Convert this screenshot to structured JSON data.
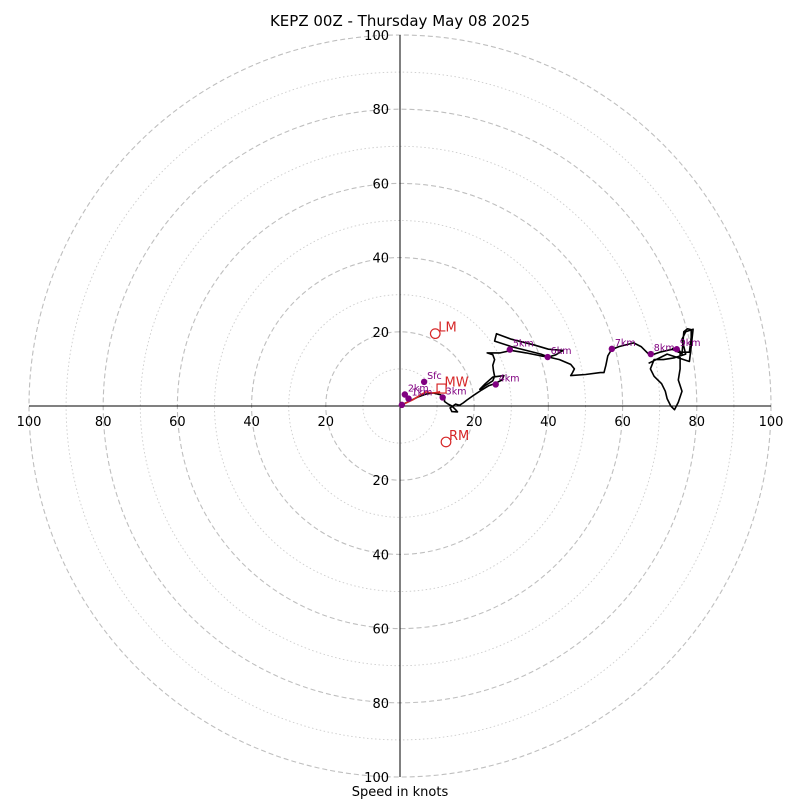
{
  "chart_data": {
    "type": "hodograph",
    "title": "KEPZ 00Z - Thursday May 08 2025",
    "xlabel": "Speed in knots",
    "units": "knots",
    "max_speed": 100,
    "ring_step_major": 20,
    "ring_step_minor": 10,
    "tick_labels": [
      "20",
      "40",
      "60",
      "80",
      "100"
    ],
    "colors": {
      "trace": "#000000",
      "low_level_trace": "#d62728",
      "height_marker": "#800080",
      "motion_marker": "#d62728",
      "ring_major": "#bfbfbf",
      "ring_minor": "#cccccc"
    },
    "wind_profile": [
      [
        0.5,
        0.3
      ],
      [
        1.5,
        0.8
      ],
      [
        3,
        1.5
      ],
      [
        5,
        2.5
      ],
      [
        7,
        3.2
      ],
      [
        9,
        3.5
      ],
      [
        11,
        3.0
      ],
      [
        12,
        2.2
      ],
      [
        12,
        1.2
      ],
      [
        13,
        0.5
      ],
      [
        14,
        0
      ],
      [
        15,
        -1.0
      ],
      [
        15.5,
        -1.6
      ],
      [
        14,
        -1.5
      ],
      [
        13.5,
        -0.5
      ],
      [
        15,
        0.5
      ],
      [
        16,
        0.2
      ],
      [
        17,
        0.8
      ],
      [
        18,
        1.6
      ],
      [
        20,
        3.0
      ],
      [
        22,
        4.3
      ],
      [
        24,
        5.5
      ],
      [
        25.5,
        6.0
      ],
      [
        27.5,
        7.0
      ],
      [
        28,
        8.2
      ],
      [
        25,
        7.8
      ],
      [
        23,
        6.0
      ],
      [
        22,
        5.0
      ],
      [
        21.5,
        4.5
      ],
      [
        23,
        5.5
      ],
      [
        25,
        6.8
      ],
      [
        25.5,
        8.0
      ],
      [
        25.2,
        9.5
      ],
      [
        25,
        11.0
      ],
      [
        25.5,
        12.5
      ],
      [
        25,
        13.8
      ],
      [
        23.5,
        14.3
      ],
      [
        27,
        14.3
      ],
      [
        30,
        15.0
      ],
      [
        34,
        14.3
      ],
      [
        38,
        13.5
      ],
      [
        40,
        13.2
      ],
      [
        42,
        13.8
      ],
      [
        44,
        15.0
      ],
      [
        40,
        15.3
      ],
      [
        36,
        16.5
      ],
      [
        30,
        18.0
      ],
      [
        26,
        19.5
      ],
      [
        25.5,
        17.5
      ],
      [
        30,
        16.0
      ],
      [
        34,
        15.0
      ],
      [
        38,
        14.0
      ],
      [
        40,
        13.2
      ],
      [
        43,
        12.5
      ],
      [
        46,
        11.2
      ],
      [
        47,
        10.0
      ],
      [
        46.5,
        9.0
      ],
      [
        46,
        8.2
      ],
      [
        50,
        8.5
      ],
      [
        54,
        9.0
      ],
      [
        55,
        9.0
      ],
      [
        55.5,
        11.0
      ],
      [
        56,
        13.5
      ],
      [
        57,
        15.2
      ],
      [
        59,
        16.0
      ],
      [
        63,
        17.0
      ],
      [
        65,
        16.0
      ],
      [
        67,
        14.0
      ],
      [
        68,
        13.8
      ],
      [
        70,
        14.5
      ],
      [
        73,
        15.2
      ],
      [
        75,
        15.3
      ],
      [
        76,
        14.0
      ],
      [
        76.5,
        20.0
      ],
      [
        77.5,
        20.8
      ],
      [
        78.5,
        20.6
      ],
      [
        78.5,
        18.5
      ],
      [
        78,
        14.5
      ],
      [
        75,
        14.5
      ],
      [
        73.5,
        15.5
      ],
      [
        74.2,
        15.0
      ],
      [
        75.5,
        14.5
      ],
      [
        75.5,
        10.0
      ],
      [
        75,
        7.0
      ],
      [
        76,
        4.0
      ],
      [
        75,
        1.0
      ],
      [
        74,
        -1.0
      ],
      [
        73,
        0.0
      ],
      [
        72,
        2.0
      ],
      [
        71.5,
        4.0
      ],
      [
        70.5,
        6.0
      ],
      [
        68.5,
        8.0
      ],
      [
        67.5,
        10.0
      ],
      [
        68.5,
        12.5
      ],
      [
        71,
        12.5
      ],
      [
        74,
        13.0
      ],
      [
        77,
        14.0
      ],
      [
        76,
        18.0
      ],
      [
        77,
        20.0
      ],
      [
        79,
        20.7
      ],
      [
        78.5,
        16.0
      ],
      [
        78,
        12.0
      ],
      [
        72,
        14.0
      ],
      [
        67,
        11.5
      ]
    ],
    "low_level_trace": [
      [
        0.5,
        0.3
      ],
      [
        2,
        1.0
      ],
      [
        3.5,
        1.7
      ],
      [
        5.5,
        3.0
      ],
      [
        7,
        3.8
      ],
      [
        8.5,
        3.5
      ],
      [
        10,
        3.6
      ],
      [
        10.8,
        3.9
      ]
    ],
    "height_markers": [
      {
        "label": "Sfc",
        "u": 6.5,
        "v": 6.5
      },
      {
        "label": "2km",
        "u": 1.3,
        "v": 3.1
      },
      {
        "label": "1km",
        "u": 2.3,
        "v": 2.0
      },
      {
        "label": "",
        "u": 0.5,
        "v": 0.3
      },
      {
        "label": "3km",
        "u": 11.5,
        "v": 2.3
      },
      {
        "label": "4km",
        "u": 25.8,
        "v": 5.8
      },
      {
        "label": "5km",
        "u": 29.6,
        "v": 15.2
      },
      {
        "label": "6km",
        "u": 39.8,
        "v": 13.2
      },
      {
        "label": "7km",
        "u": 57.1,
        "v": 15.4
      },
      {
        "label": "8km",
        "u": 67.6,
        "v": 14.0
      },
      {
        "label": "9km",
        "u": 74.6,
        "v": 15.3
      }
    ],
    "storm_motion": [
      {
        "label": "LM",
        "u": 9.5,
        "v": 19.5,
        "shape": "circle"
      },
      {
        "label": "MW",
        "u": 11.2,
        "v": 4.7,
        "shape": "square"
      },
      {
        "label": "RM",
        "u": 12.4,
        "v": -9.7,
        "shape": "circle"
      }
    ]
  }
}
